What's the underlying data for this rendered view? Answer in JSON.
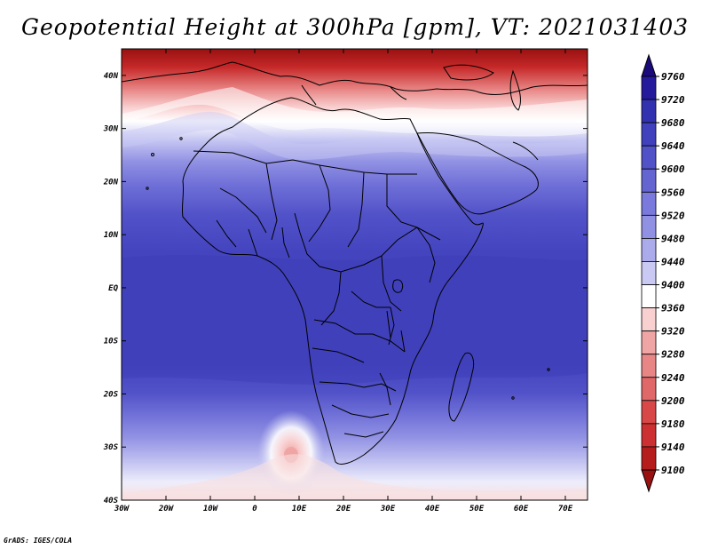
{
  "title": "Geopotential Height at 300hPa [gpm], VT: 2021031403",
  "credit": "GrADS: IGES/COLA",
  "map": {
    "projection": "lat-lon",
    "lon_range": [
      -30,
      75
    ],
    "lat_range": [
      -40,
      45
    ],
    "lon_ticks": [
      {
        "value": -30,
        "label": "30W"
      },
      {
        "value": -20,
        "label": "20W"
      },
      {
        "value": -10,
        "label": "10W"
      },
      {
        "value": 0,
        "label": "0"
      },
      {
        "value": 10,
        "label": "10E"
      },
      {
        "value": 20,
        "label": "20E"
      },
      {
        "value": 30,
        "label": "30E"
      },
      {
        "value": 40,
        "label": "40E"
      },
      {
        "value": 50,
        "label": "50E"
      },
      {
        "value": 60,
        "label": "60E"
      },
      {
        "value": 70,
        "label": "70E"
      }
    ],
    "lat_ticks": [
      {
        "value": 40,
        "label": "40N"
      },
      {
        "value": 30,
        "label": "30N"
      },
      {
        "value": 20,
        "label": "20N"
      },
      {
        "value": 10,
        "label": "10N"
      },
      {
        "value": 0,
        "label": "EQ"
      },
      {
        "value": -10,
        "label": "10S"
      },
      {
        "value": -20,
        "label": "20S"
      },
      {
        "value": -30,
        "label": "30S"
      },
      {
        "value": -40,
        "label": "40S"
      }
    ],
    "field_bands_by_latitude": [
      {
        "lat": 45,
        "value": 9130
      },
      {
        "lat": 41,
        "value": 9250
      },
      {
        "lat": 37,
        "value": 9360
      },
      {
        "lat": 33,
        "value": 9420
      },
      {
        "lat": 29,
        "value": 9480
      },
      {
        "lat": 24,
        "value": 9540
      },
      {
        "lat": 19,
        "value": 9600
      },
      {
        "lat": 12,
        "value": 9650
      },
      {
        "lat": 0,
        "value": 9670
      },
      {
        "lat": -10,
        "value": 9670
      },
      {
        "lat": -20,
        "value": 9650
      },
      {
        "lat": -26,
        "value": 9600
      },
      {
        "lat": -30,
        "value": 9540
      },
      {
        "lat": -34,
        "value": 9470
      },
      {
        "lat": -38,
        "value": 9420
      },
      {
        "lat": -40,
        "value": 9400
      }
    ],
    "low_center": {
      "lon": 8,
      "lat": -31,
      "value": 9340
    }
  },
  "colorbar": {
    "levels": [
      "9760",
      "9720",
      "9680",
      "9640",
      "9600",
      "9560",
      "9520",
      "9480",
      "9440",
      "9400",
      "9360",
      "9320",
      "9280",
      "9240",
      "9200",
      "9180",
      "9140",
      "9100"
    ],
    "colors": [
      "#1a0a7a",
      "#25199c",
      "#3232b0",
      "#4141bd",
      "#5151c8",
      "#6565d2",
      "#7a7adc",
      "#9191e4",
      "#ababec",
      "#c9c9f3",
      "#ffffff",
      "#f9d0d0",
      "#f0a5a5",
      "#e88585",
      "#e06868",
      "#d84848",
      "#cd3030",
      "#b51c1c",
      "#991111"
    ]
  }
}
